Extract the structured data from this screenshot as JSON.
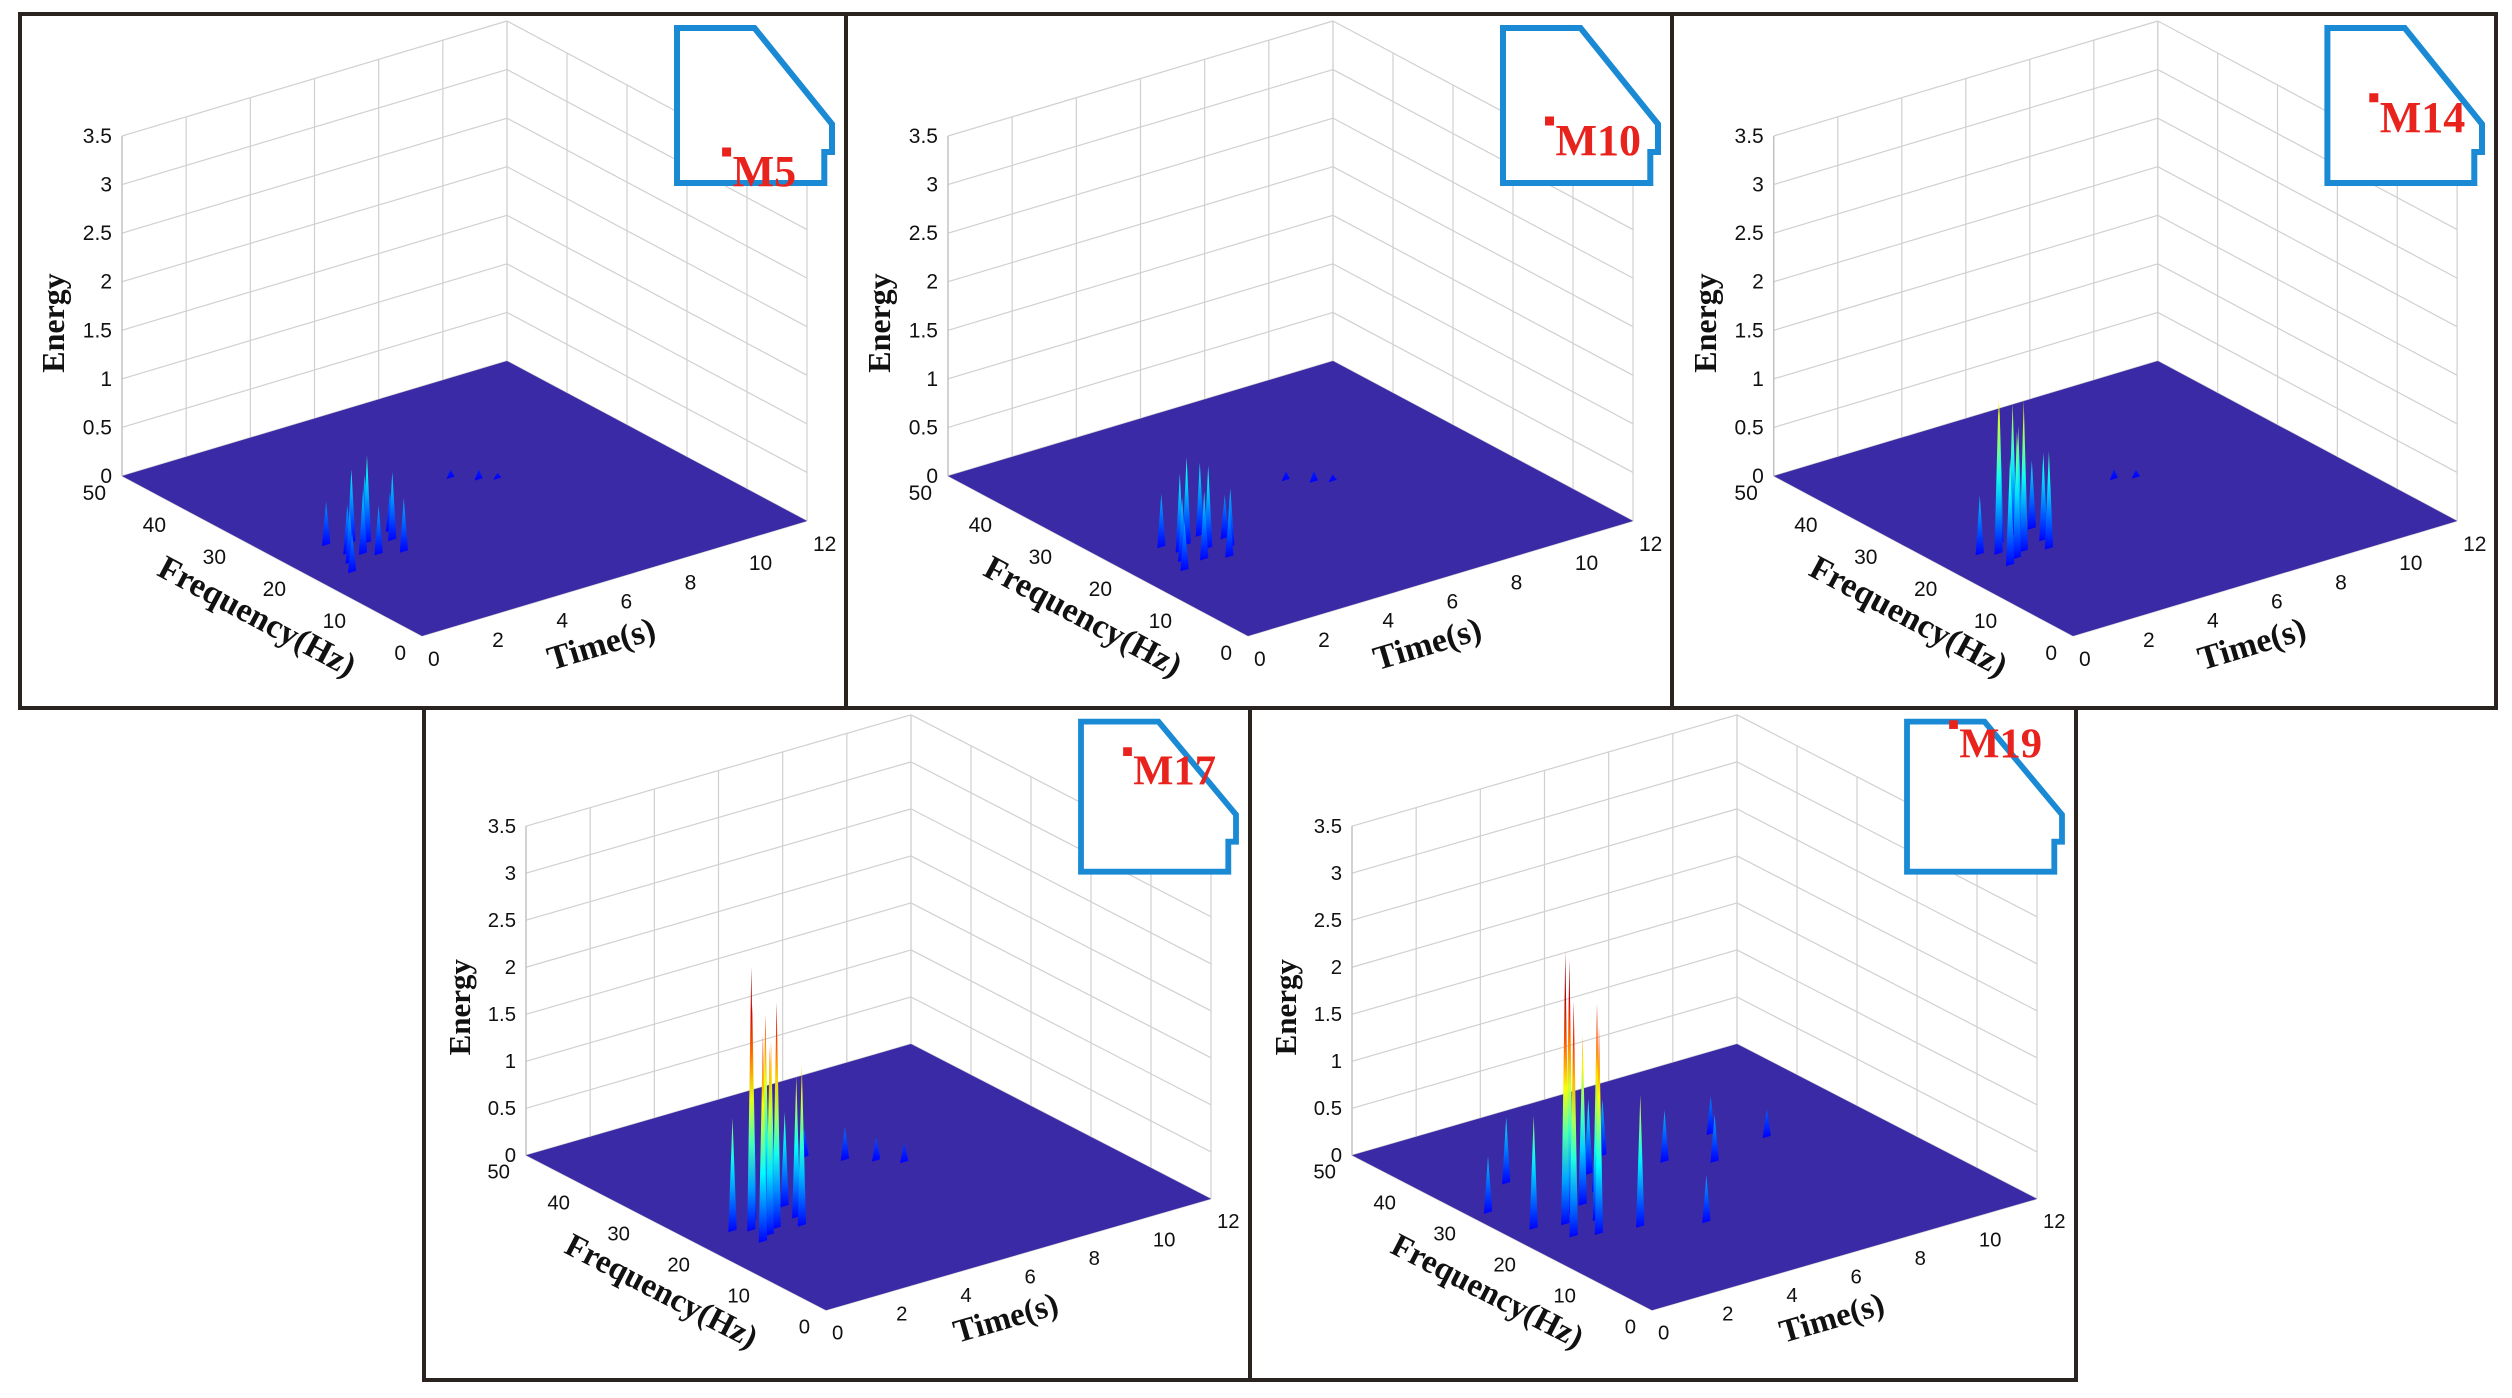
{
  "figure": {
    "colors": {
      "border": "#2b2320",
      "floor": "#3b2aa6",
      "inset_outline": "#1a8ad4",
      "marker": "#e8231e",
      "grid": "#d0d0d0"
    }
  },
  "chart_data": [
    {
      "type": "surface3d",
      "name": "M5",
      "zlabel": "Energy",
      "ylabel": "Frequency(Hz)",
      "xlabel": "Time(s)",
      "zlim": [
        0,
        3.5
      ],
      "ylim": [
        0,
        50
      ],
      "xlim": [
        0,
        12
      ],
      "z_ticks": [
        "0",
        "0.5",
        "1",
        "1.5",
        "2",
        "2.5",
        "3",
        "3.5"
      ],
      "y_ticks": [
        "0",
        "10",
        "20",
        "30",
        "40",
        "50"
      ],
      "x_ticks": [
        "0",
        "2",
        "4",
        "6",
        "8",
        "10",
        "12"
      ],
      "inset_label": "M5",
      "inset_marker": [
        0.32,
        0.8
      ],
      "peaks": [
        {
          "t": 1.0,
          "f": 17,
          "e": 0.4
        },
        {
          "t": 1.3,
          "f": 19,
          "e": 0.55
        },
        {
          "t": 1.6,
          "f": 21,
          "e": 0.5
        },
        {
          "t": 1.9,
          "f": 20,
          "e": 0.65
        },
        {
          "t": 2.1,
          "f": 23,
          "e": 0.75
        },
        {
          "t": 2.4,
          "f": 22,
          "e": 0.9
        },
        {
          "t": 2.7,
          "f": 24,
          "e": 0.6
        },
        {
          "t": 3.0,
          "f": 21,
          "e": 0.7
        },
        {
          "t": 2.2,
          "f": 19,
          "e": 0.5
        },
        {
          "t": 1.5,
          "f": 24,
          "e": 0.45
        },
        {
          "t": 2.8,
          "f": 18,
          "e": 0.55
        },
        {
          "t": 3.3,
          "f": 23,
          "e": 0.4
        },
        {
          "t": 6.5,
          "f": 30,
          "e": 0.08
        },
        {
          "t": 7.0,
          "f": 28,
          "e": 0.1
        },
        {
          "t": 7.4,
          "f": 27,
          "e": 0.06
        }
      ]
    },
    {
      "type": "surface3d",
      "name": "M10",
      "zlabel": "Energy",
      "ylabel": "Frequency(Hz)",
      "xlabel": "Time(s)",
      "zlim": [
        0,
        3.5
      ],
      "ylim": [
        0,
        50
      ],
      "xlim": [
        0,
        12
      ],
      "z_ticks": [
        "0",
        "0.5",
        "1",
        "1.5",
        "2",
        "2.5",
        "3",
        "3.5"
      ],
      "y_ticks": [
        "0",
        "10",
        "20",
        "30",
        "40",
        "50"
      ],
      "x_ticks": [
        "0",
        "2",
        "4",
        "6",
        "8",
        "10",
        "12"
      ],
      "inset_label": "M10",
      "inset_marker": [
        0.3,
        0.6
      ],
      "peaks": [
        {
          "t": 1.2,
          "f": 17,
          "e": 0.5
        },
        {
          "t": 1.5,
          "f": 19,
          "e": 0.65
        },
        {
          "t": 1.8,
          "f": 21,
          "e": 0.8
        },
        {
          "t": 2.0,
          "f": 18,
          "e": 0.7
        },
        {
          "t": 2.2,
          "f": 22,
          "e": 0.9
        },
        {
          "t": 2.5,
          "f": 20,
          "e": 0.85
        },
        {
          "t": 2.8,
          "f": 23,
          "e": 0.75
        },
        {
          "t": 3.0,
          "f": 19,
          "e": 0.6
        },
        {
          "t": 1.6,
          "f": 23,
          "e": 0.55
        },
        {
          "t": 2.6,
          "f": 17,
          "e": 0.5
        },
        {
          "t": 3.2,
          "f": 21,
          "e": 0.45
        },
        {
          "t": 6.6,
          "f": 29,
          "e": 0.09
        },
        {
          "t": 7.1,
          "f": 27,
          "e": 0.11
        },
        {
          "t": 7.5,
          "f": 26,
          "e": 0.07
        }
      ]
    },
    {
      "type": "surface3d",
      "name": "M14",
      "zlabel": "Energy",
      "ylabel": "Frequency(Hz)",
      "xlabel": "Time(s)",
      "zlim": [
        0,
        3.5
      ],
      "ylim": [
        0,
        50
      ],
      "xlim": [
        0,
        12
      ],
      "z_ticks": [
        "0",
        "0.5",
        "1",
        "1.5",
        "2",
        "2.5",
        "3",
        "3.5"
      ],
      "y_ticks": [
        "0",
        "10",
        "20",
        "30",
        "40",
        "50"
      ],
      "x_ticks": [
        "0",
        "2",
        "4",
        "6",
        "8",
        "10",
        "12"
      ],
      "inset_label": "M14",
      "inset_marker": [
        0.3,
        0.45
      ],
      "peaks": [
        {
          "t": 1.4,
          "f": 18,
          "e": 1.1
        },
        {
          "t": 1.6,
          "f": 21,
          "e": 1.6
        },
        {
          "t": 1.8,
          "f": 19,
          "e": 1.3
        },
        {
          "t": 2.0,
          "f": 23,
          "e": 1.45
        },
        {
          "t": 2.2,
          "f": 20,
          "e": 1.55
        },
        {
          "t": 2.4,
          "f": 22,
          "e": 1.2
        },
        {
          "t": 2.6,
          "f": 24,
          "e": 1.35
        },
        {
          "t": 2.8,
          "f": 19,
          "e": 1.0
        },
        {
          "t": 3.0,
          "f": 21,
          "e": 0.9
        },
        {
          "t": 1.2,
          "f": 22,
          "e": 0.6
        },
        {
          "t": 3.2,
          "f": 24,
          "e": 0.7
        },
        {
          "t": 6.7,
          "f": 29,
          "e": 0.1
        },
        {
          "t": 7.2,
          "f": 28,
          "e": 0.08
        }
      ]
    },
    {
      "type": "surface3d",
      "name": "M17",
      "zlabel": "Energy",
      "ylabel": "Frequency(Hz)",
      "xlabel": "Time(s)",
      "zlim": [
        0,
        3.5
      ],
      "ylim": [
        0,
        50
      ],
      "xlim": [
        0,
        12
      ],
      "z_ticks": [
        "0",
        "0.5",
        "1",
        "1.5",
        "2",
        "2.5",
        "3",
        "3.5"
      ],
      "y_ticks": [
        "0",
        "10",
        "20",
        "30",
        "40",
        "50"
      ],
      "x_ticks": [
        "0",
        "2",
        "4",
        "6",
        "8",
        "10",
        "12"
      ],
      "inset_label": "M17",
      "inset_marker": [
        0.3,
        0.2
      ],
      "peaks": [
        {
          "t": 1.4,
          "f": 18,
          "e": 2.2
        },
        {
          "t": 1.6,
          "f": 21,
          "e": 2.8
        },
        {
          "t": 1.8,
          "f": 19,
          "e": 2.0
        },
        {
          "t": 2.0,
          "f": 23,
          "e": 2.3
        },
        {
          "t": 2.2,
          "f": 20,
          "e": 2.4
        },
        {
          "t": 2.4,
          "f": 22,
          "e": 1.9
        },
        {
          "t": 2.6,
          "f": 24,
          "e": 2.1
        },
        {
          "t": 2.8,
          "f": 19,
          "e": 1.7
        },
        {
          "t": 3.0,
          "f": 21,
          "e": 1.5
        },
        {
          "t": 1.2,
          "f": 22,
          "e": 1.2
        },
        {
          "t": 3.2,
          "f": 24,
          "e": 1.0
        },
        {
          "t": 5.5,
          "f": 33,
          "e": 0.3
        },
        {
          "t": 6.2,
          "f": 30,
          "e": 0.35
        },
        {
          "t": 6.8,
          "f": 28,
          "e": 0.25
        },
        {
          "t": 7.3,
          "f": 26,
          "e": 0.2
        }
      ]
    },
    {
      "type": "surface3d",
      "name": "M19",
      "zlabel": "Energy",
      "ylabel": "Frequency(Hz)",
      "xlabel": "Time(s)",
      "zlim": [
        0,
        3.5
      ],
      "ylim": [
        0,
        50
      ],
      "xlim": [
        0,
        12
      ],
      "z_ticks": [
        "0",
        "0.5",
        "1",
        "1.5",
        "2",
        "2.5",
        "3",
        "3.5"
      ],
      "y_ticks": [
        "0",
        "10",
        "20",
        "30",
        "40",
        "50"
      ],
      "x_ticks": [
        "0",
        "2",
        "4",
        "6",
        "8",
        "10",
        "12"
      ],
      "inset_label": "M19",
      "inset_marker": [
        0.3,
        0.02
      ],
      "peaks": [
        {
          "t": 1.3,
          "f": 20,
          "e": 2.5
        },
        {
          "t": 1.6,
          "f": 23,
          "e": 2.9
        },
        {
          "t": 1.9,
          "f": 19,
          "e": 2.2
        },
        {
          "t": 2.1,
          "f": 25,
          "e": 2.7
        },
        {
          "t": 2.4,
          "f": 22,
          "e": 2.3
        },
        {
          "t": 2.7,
          "f": 26,
          "e": 1.8
        },
        {
          "t": 0.8,
          "f": 24,
          "e": 1.2
        },
        {
          "t": 3.0,
          "f": 18,
          "e": 1.4
        },
        {
          "t": 0.5,
          "f": 30,
          "e": 0.6
        },
        {
          "t": 3.5,
          "f": 28,
          "e": 0.9
        },
        {
          "t": 4.0,
          "f": 32,
          "e": 0.8
        },
        {
          "t": 5.0,
          "f": 35,
          "e": 0.6
        },
        {
          "t": 6.0,
          "f": 30,
          "e": 0.55
        },
        {
          "t": 7.0,
          "f": 27,
          "e": 0.5
        },
        {
          "t": 8.0,
          "f": 33,
          "e": 0.4
        },
        {
          "t": 9.0,
          "f": 29,
          "e": 0.3
        },
        {
          "t": 2.0,
          "f": 35,
          "e": 0.7
        },
        {
          "t": 4.5,
          "f": 15,
          "e": 0.5
        }
      ]
    }
  ]
}
